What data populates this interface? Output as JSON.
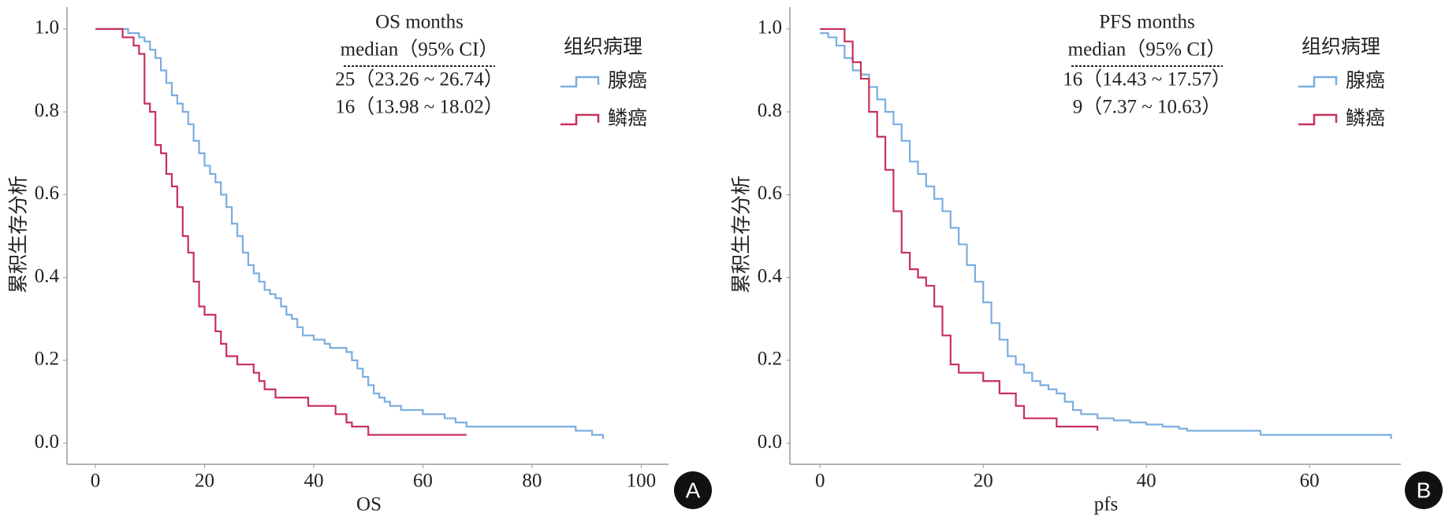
{
  "chart_data": [
    {
      "type": "step",
      "xlabel": "OS",
      "ylabel": "累积生存分析",
      "panel_label": "A",
      "annotations": [
        "OS months",
        "median（95% CI）",
        "25（23.26 ~ 26.74）",
        "16（13.98 ~ 18.02）"
      ],
      "legend_title": "组织病理",
      "legend": "upper right",
      "xlim": [
        -5.2,
        105
      ],
      "ylim": [
        -0.051,
        1.053
      ],
      "xticks": [
        0,
        20,
        40,
        60,
        80,
        100
      ],
      "yticks": [
        {
          "value": 0,
          "label": "0.0"
        },
        0.2,
        0.4,
        0.6,
        0.8,
        {
          "value": 1,
          "label": "1.0"
        }
      ],
      "series": [
        {
          "name": "腺癌",
          "color": "#7aaee0",
          "x": [
            0,
            4,
            6,
            8,
            9,
            10,
            11,
            12,
            13,
            14,
            15,
            16,
            17,
            18,
            19,
            20,
            21,
            22,
            23,
            24,
            25,
            26,
            27,
            28,
            29,
            30,
            31,
            32,
            33,
            34,
            35,
            36,
            37,
            38,
            40,
            42,
            43,
            46,
            47,
            48,
            49,
            50,
            51,
            52,
            53,
            54,
            56,
            60,
            64,
            66,
            68,
            88,
            91,
            93
          ],
          "values": [
            1.0,
            1.0,
            0.99,
            0.98,
            0.97,
            0.95,
            0.93,
            0.9,
            0.87,
            0.84,
            0.82,
            0.8,
            0.77,
            0.73,
            0.7,
            0.67,
            0.65,
            0.63,
            0.6,
            0.57,
            0.53,
            0.5,
            0.46,
            0.43,
            0.41,
            0.39,
            0.37,
            0.36,
            0.35,
            0.33,
            0.31,
            0.3,
            0.28,
            0.26,
            0.25,
            0.24,
            0.23,
            0.22,
            0.2,
            0.18,
            0.16,
            0.14,
            0.12,
            0.11,
            0.1,
            0.09,
            0.08,
            0.07,
            0.06,
            0.05,
            0.04,
            0.03,
            0.02,
            0.01
          ]
        },
        {
          "name": "鳞癌",
          "color": "#c8305a",
          "x": [
            0,
            3,
            5,
            7,
            8,
            9,
            10,
            11,
            12,
            13,
            14,
            15,
            16,
            17,
            18,
            19,
            20,
            22,
            23,
            24,
            26,
            29,
            30,
            31,
            33,
            39,
            44,
            46,
            47,
            50,
            68
          ],
          "values": [
            1.0,
            1.0,
            0.98,
            0.96,
            0.94,
            0.82,
            0.8,
            0.72,
            0.7,
            0.65,
            0.62,
            0.57,
            0.5,
            0.46,
            0.39,
            0.33,
            0.31,
            0.27,
            0.24,
            0.21,
            0.19,
            0.17,
            0.15,
            0.13,
            0.11,
            0.09,
            0.07,
            0.05,
            0.04,
            0.02,
            0.02
          ]
        }
      ]
    },
    {
      "type": "step",
      "xlabel": "pfs",
      "ylabel": "累积生存分析",
      "panel_label": "B",
      "annotations": [
        "PFS months",
        "median（95% CI）",
        "16（14.43 ~ 17.57）",
        "9（7.37 ~ 10.63）"
      ],
      "legend_title": "组织病理",
      "legend": "upper right",
      "xlim": [
        -3.7,
        71.2
      ],
      "ylim": [
        -0.051,
        1.053
      ],
      "xticks": [
        0,
        20,
        40,
        60
      ],
      "yticks": [
        {
          "value": 0,
          "label": "0.0"
        },
        0.2,
        0.4,
        0.6,
        0.8,
        {
          "value": 1,
          "label": "1.0"
        }
      ],
      "series": [
        {
          "name": "腺癌",
          "color": "#7aaee0",
          "x": [
            0,
            1,
            2,
            3,
            4,
            5,
            6,
            7,
            8,
            9,
            10,
            11,
            12,
            13,
            14,
            15,
            16,
            17,
            18,
            19,
            20,
            21,
            22,
            23,
            24,
            25,
            26,
            27,
            28,
            29,
            30,
            31,
            32,
            34,
            36,
            38,
            40,
            42,
            44,
            45,
            54,
            70
          ],
          "values": [
            0.99,
            0.98,
            0.96,
            0.93,
            0.9,
            0.89,
            0.86,
            0.83,
            0.8,
            0.77,
            0.73,
            0.68,
            0.65,
            0.62,
            0.59,
            0.56,
            0.52,
            0.48,
            0.43,
            0.39,
            0.34,
            0.29,
            0.25,
            0.21,
            0.19,
            0.17,
            0.15,
            0.14,
            0.13,
            0.12,
            0.1,
            0.08,
            0.07,
            0.06,
            0.055,
            0.05,
            0.045,
            0.04,
            0.035,
            0.03,
            0.02,
            0.01
          ]
        },
        {
          "name": "鳞癌",
          "color": "#c8305a",
          "x": [
            0,
            2,
            3,
            4,
            5,
            6,
            7,
            8,
            9,
            10,
            11,
            12,
            13,
            14,
            15,
            16,
            17,
            20,
            22,
            24,
            25,
            29,
            34
          ],
          "values": [
            1.0,
            1.0,
            0.97,
            0.92,
            0.88,
            0.8,
            0.74,
            0.66,
            0.56,
            0.46,
            0.42,
            0.4,
            0.38,
            0.33,
            0.26,
            0.19,
            0.17,
            0.15,
            0.12,
            0.09,
            0.06,
            0.04,
            0.03
          ]
        }
      ]
    }
  ]
}
